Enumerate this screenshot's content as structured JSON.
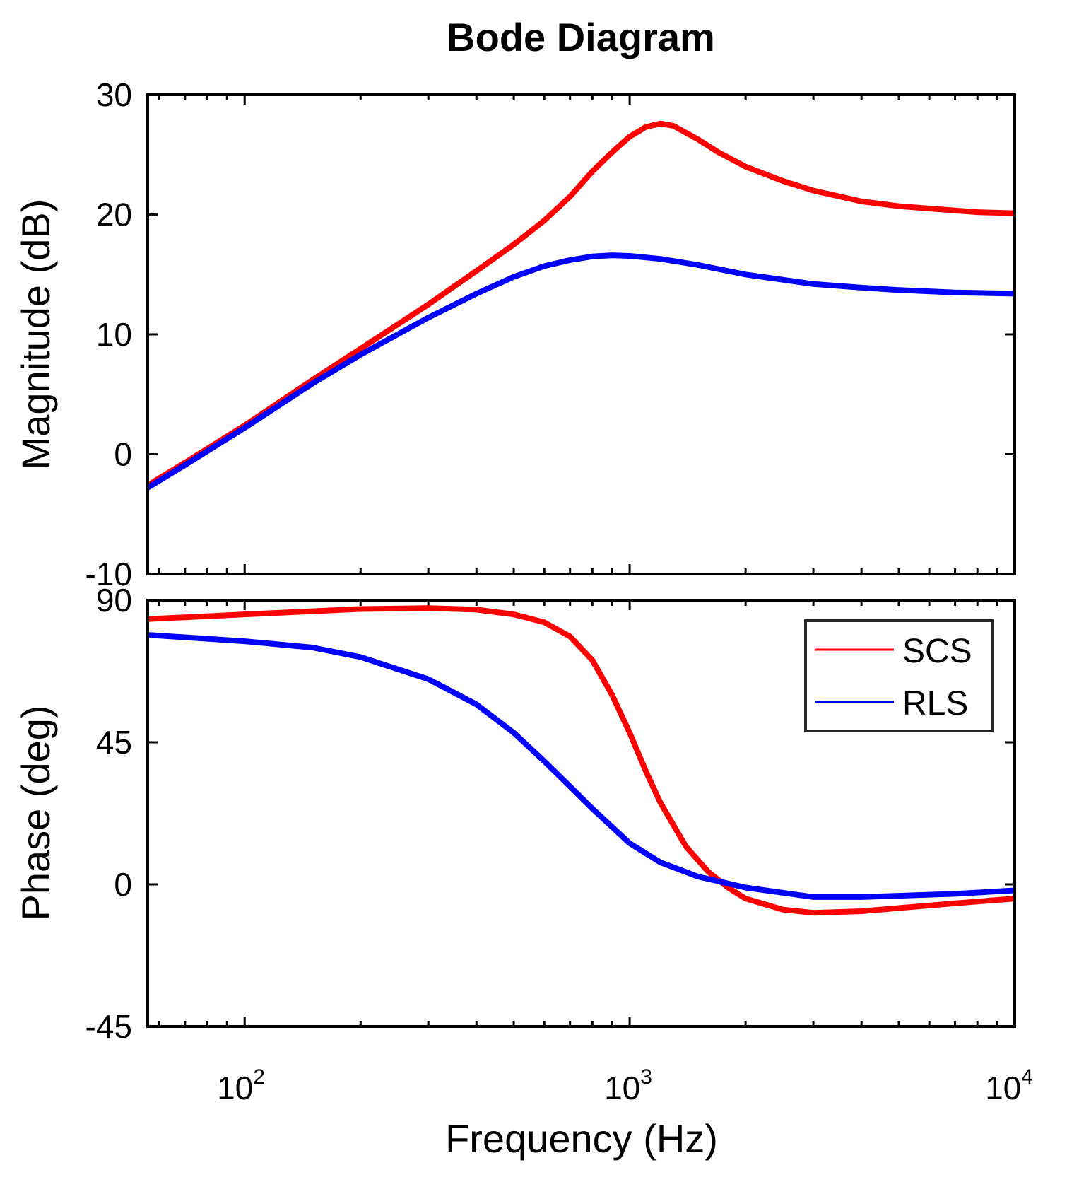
{
  "chart_data": {
    "type": "line",
    "title": "Bode Diagram",
    "xlabel": "Frequency  (Hz)",
    "xscale": "log",
    "xlim": [
      56,
      10000
    ],
    "x_ticks": [
      {
        "base": "10",
        "exp": "2",
        "value": 100
      },
      {
        "base": "10",
        "exp": "3",
        "value": 1000
      },
      {
        "base": "10",
        "exp": "4",
        "value": 10000
      }
    ],
    "legend": {
      "location": "top-right",
      "entries": [
        {
          "label": "SCS",
          "color": "#ff0000"
        },
        {
          "label": "RLS",
          "color": "#0000ff"
        }
      ]
    },
    "magnitude": {
      "ylabel": "Magnitude (dB)",
      "ylim": [
        -10,
        30
      ],
      "yticks": [
        {
          "value": 30,
          "label": "30"
        },
        {
          "value": 20,
          "label": "20"
        },
        {
          "value": 10,
          "label": "10"
        },
        {
          "value": 0,
          "label": "0"
        },
        {
          "value": -10,
          "label": "-10"
        }
      ],
      "series": [
        {
          "name": "SCS",
          "color": "#ff0000",
          "points": [
            [
              56,
              -2.6
            ],
            [
              70,
              -0.7
            ],
            [
              100,
              2.4
            ],
            [
              150,
              6.2
            ],
            [
              200,
              8.8
            ],
            [
              300,
              12.5
            ],
            [
              400,
              15.3
            ],
            [
              500,
              17.5
            ],
            [
              600,
              19.5
            ],
            [
              700,
              21.5
            ],
            [
              800,
              23.6
            ],
            [
              900,
              25.2
            ],
            [
              1000,
              26.5
            ],
            [
              1100,
              27.3
            ],
            [
              1200,
              27.6
            ],
            [
              1300,
              27.4
            ],
            [
              1500,
              26.3
            ],
            [
              1700,
              25.2
            ],
            [
              2000,
              24.0
            ],
            [
              2500,
              22.8
            ],
            [
              3000,
              22.0
            ],
            [
              4000,
              21.1
            ],
            [
              5000,
              20.7
            ],
            [
              6000,
              20.5
            ],
            [
              8000,
              20.2
            ],
            [
              10000,
              20.1
            ]
          ]
        },
        {
          "name": "RLS",
          "color": "#0000ff",
          "points": [
            [
              56,
              -2.8
            ],
            [
              70,
              -0.9
            ],
            [
              100,
              2.2
            ],
            [
              150,
              5.9
            ],
            [
              200,
              8.3
            ],
            [
              300,
              11.4
            ],
            [
              400,
              13.4
            ],
            [
              500,
              14.8
            ],
            [
              600,
              15.7
            ],
            [
              700,
              16.2
            ],
            [
              800,
              16.5
            ],
            [
              900,
              16.6
            ],
            [
              1000,
              16.55
            ],
            [
              1200,
              16.3
            ],
            [
              1500,
              15.8
            ],
            [
              2000,
              15.0
            ],
            [
              3000,
              14.2
            ],
            [
              4000,
              13.9
            ],
            [
              5000,
              13.7
            ],
            [
              7000,
              13.5
            ],
            [
              10000,
              13.4
            ]
          ]
        }
      ]
    },
    "phase": {
      "ylabel": "Phase (deg)",
      "ylim": [
        -45,
        90
      ],
      "yticks": [
        {
          "value": 90,
          "label": "90"
        },
        {
          "value": 45,
          "label": "45"
        },
        {
          "value": 0,
          "label": "0"
        },
        {
          "value": -45,
          "label": "-45"
        }
      ],
      "series": [
        {
          "name": "SCS",
          "color": "#ff0000",
          "points": [
            [
              56,
              84
            ],
            [
              100,
              85.5
            ],
            [
              200,
              87.2
            ],
            [
              300,
              87.5
            ],
            [
              400,
              87
            ],
            [
              500,
              85.5
            ],
            [
              600,
              83
            ],
            [
              700,
              78.5
            ],
            [
              800,
              71
            ],
            [
              900,
              60
            ],
            [
              1000,
              48
            ],
            [
              1100,
              36
            ],
            [
              1200,
              26
            ],
            [
              1400,
              12
            ],
            [
              1600,
              4
            ],
            [
              1800,
              -1
            ],
            [
              2000,
              -4.5
            ],
            [
              2500,
              -8
            ],
            [
              3000,
              -9
            ],
            [
              4000,
              -8.5
            ],
            [
              5000,
              -7.5
            ],
            [
              7000,
              -6
            ],
            [
              10000,
              -4.5
            ]
          ]
        },
        {
          "name": "RLS",
          "color": "#0000ff",
          "points": [
            [
              56,
              79
            ],
            [
              100,
              77
            ],
            [
              150,
              75
            ],
            [
              200,
              72
            ],
            [
              300,
              65
            ],
            [
              400,
              57
            ],
            [
              500,
              48
            ],
            [
              600,
              39
            ],
            [
              700,
              31
            ],
            [
              800,
              24
            ],
            [
              1000,
              13
            ],
            [
              1200,
              7
            ],
            [
              1500,
              2.5
            ],
            [
              2000,
              -1
            ],
            [
              3000,
              -4
            ],
            [
              4000,
              -4
            ],
            [
              5000,
              -3.6
            ],
            [
              7000,
              -3
            ],
            [
              10000,
              -1.9
            ]
          ]
        }
      ]
    }
  }
}
